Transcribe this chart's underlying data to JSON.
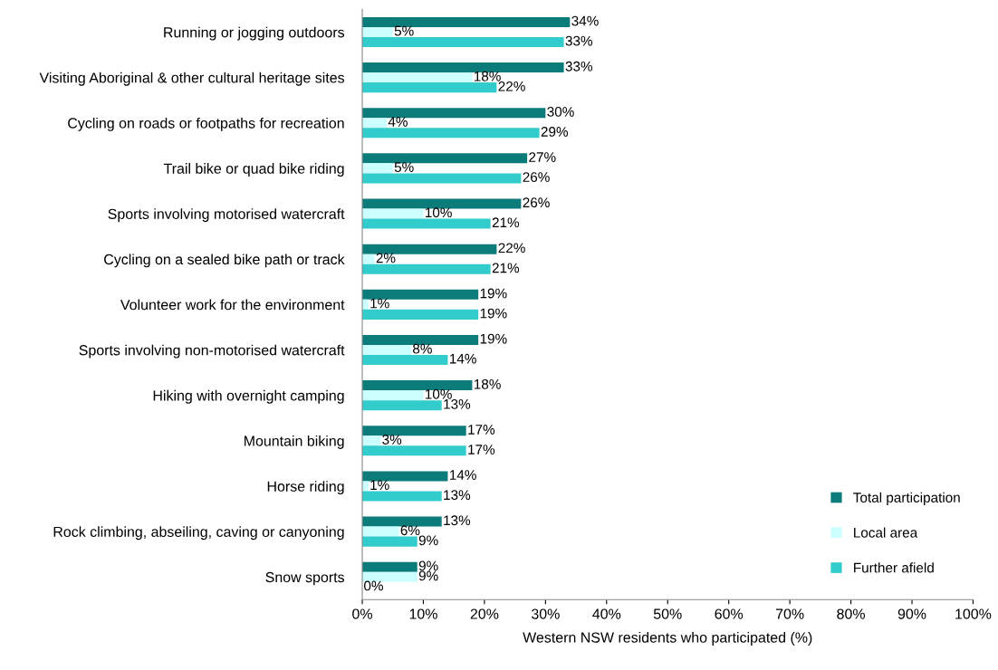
{
  "chart_data": {
    "type": "bar",
    "orientation": "horizontal",
    "xlabel": "Western NSW residents who participated (%)",
    "categories": [
      "Running or jogging outdoors",
      "Visiting Aboriginal & other cultural heritage sites",
      "Cycling on roads or footpaths for recreation",
      "Trail bike or quad bike riding",
      "Sports involving motorised watercraft",
      "Cycling on a sealed bike path or track",
      "Volunteer work for the environment",
      "Sports involving non-motorised watercraft",
      "Hiking with overnight camping",
      "Mountain biking",
      "Horse riding",
      "Rock climbing, abseiling, caving or canyoning",
      "Snow sports"
    ],
    "series": [
      {
        "name": "Total participation",
        "color": "#0b7c7a",
        "values": [
          34,
          33,
          30,
          27,
          26,
          22,
          19,
          19,
          18,
          17,
          14,
          13,
          9
        ],
        "value_labels": [
          "34%",
          "33%",
          "30%",
          "27%",
          "26%",
          "22%",
          "19%",
          "19%",
          "18%",
          "17%",
          "14%",
          "13%",
          "9%"
        ]
      },
      {
        "name": "Local area",
        "color": "#ccffff",
        "values": [
          5,
          18,
          4,
          5,
          10,
          2,
          1,
          8,
          10,
          3,
          1,
          6,
          9
        ],
        "value_labels": [
          "5%",
          "18%",
          "4%",
          "5%",
          "10%",
          "2%",
          "1%",
          "8%",
          "10%",
          "3%",
          "1%",
          "6%",
          "9%"
        ]
      },
      {
        "name": "Further afield",
        "color": "#33cccc",
        "values": [
          33,
          22,
          29,
          26,
          21,
          21,
          19,
          14,
          13,
          17,
          13,
          9,
          0
        ],
        "value_labels": [
          "33%",
          "22%",
          "29%",
          "26%",
          "21%",
          "21%",
          "19%",
          "14%",
          "13%",
          "17%",
          "13%",
          "9%",
          "0%"
        ]
      }
    ],
    "xlim": [
      0,
      100
    ],
    "xticks": [
      {
        "value": 0,
        "label": "0%"
      },
      {
        "value": 10,
        "label": "10%"
      },
      {
        "value": 20,
        "label": "20%"
      },
      {
        "value": 30,
        "label": "30%"
      },
      {
        "value": 40,
        "label": "40%"
      },
      {
        "value": 50,
        "label": "50%"
      },
      {
        "value": 60,
        "label": "60%"
      },
      {
        "value": 70,
        "label": "70%"
      },
      {
        "value": 80,
        "label": "80%"
      },
      {
        "value": 90,
        "label": "90%"
      },
      {
        "value": 100,
        "label": "100%"
      }
    ],
    "grid": false,
    "legend": "bottom right"
  }
}
